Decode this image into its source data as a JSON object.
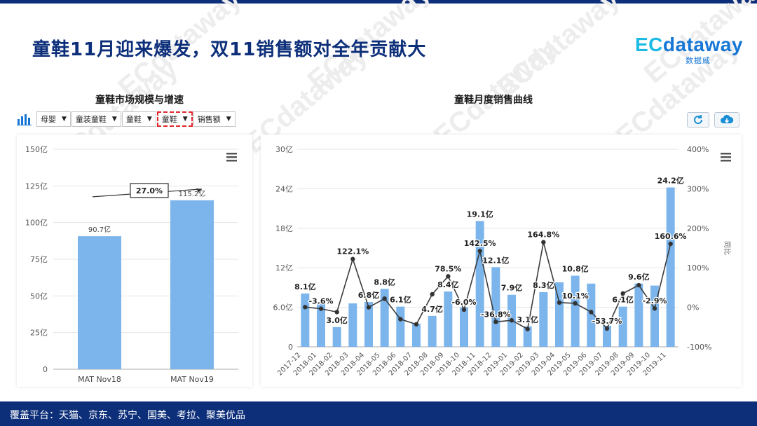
{
  "header": {
    "title": "童鞋11月迎来爆发，双11销售额对全年贡献大",
    "logo_ec": "EC",
    "logo_name": "dataway",
    "logo_sub": "数据威"
  },
  "watermark_text": "ECdataway",
  "left_panel": {
    "title": "童鞋市场规模与增速",
    "filters": [
      {
        "label": "母婴",
        "highlighted": false
      },
      {
        "label": "童装童鞋",
        "highlighted": false
      },
      {
        "label": "童鞋",
        "highlighted": false
      },
      {
        "label": "童鞋",
        "highlighted": true
      },
      {
        "label": "销售额",
        "highlighted": false
      }
    ]
  },
  "right_panel": {
    "title": "童鞋月度销售曲线"
  },
  "footer": {
    "text": "覆盖平台：天猫、京东、苏宁、国美、考拉、聚美优品"
  },
  "colors": {
    "brand": "#0d2f7a",
    "bar": "#7cb5ec",
    "line": "#3c3c3c",
    "highlight": "#e0262c"
  },
  "chart_data": [
    {
      "type": "bar",
      "title": "童鞋市场规模与增速",
      "categories": [
        "MAT Nov18",
        "MAT Nov19"
      ],
      "values": [
        90.7,
        115.2
      ],
      "data_labels": [
        "90.7亿",
        "115.2亿"
      ],
      "y_ticks": [
        "0",
        "25亿",
        "50亿",
        "75亿",
        "100亿",
        "125亿",
        "150亿"
      ],
      "ylim": [
        0,
        150
      ],
      "growth_label": "27.0%",
      "grid": true
    },
    {
      "type": "bar+line",
      "title": "童鞋月度销售曲线",
      "categories": [
        "2017-12",
        "2018-01",
        "2018-02",
        "2018-03",
        "2018-04",
        "2018-05",
        "2018-06",
        "2018-07",
        "2018-08",
        "2018-09",
        "2018-10",
        "2018-11",
        "2018-12",
        "2019-01",
        "2019-02",
        "2019-03",
        "2019-04",
        "2019-05",
        "2019-06",
        "2019-07",
        "2019-08",
        "2019-09",
        "2019-10",
        "2019-11"
      ],
      "bar_values": [
        8.1,
        6.8,
        3.0,
        6.6,
        6.8,
        8.8,
        6.1,
        3.5,
        4.7,
        8.4,
        6.0,
        19.1,
        12.1,
        7.9,
        3.1,
        8.3,
        9.8,
        10.8,
        9.6,
        3.2,
        6.1,
        9.6,
        9.3,
        24.2
      ],
      "bar_labels": [
        "8.1亿",
        "",
        "3.0亿",
        "",
        "6.8亿",
        "8.8亿",
        "6.1亿",
        "",
        "4.7亿",
        "8.4亿",
        "",
        "19.1亿",
        "12.1亿",
        "7.9亿",
        "3.1亿",
        "8.3亿",
        "",
        "10.8亿",
        "",
        "",
        "6.1亿",
        "9.6亿",
        "",
        "24.2亿"
      ],
      "line_values": [
        0.5,
        -3.6,
        -12,
        122.1,
        0,
        22,
        -30,
        -43,
        33,
        78.5,
        -6.0,
        142.5,
        -36.8,
        -33,
        -55,
        164.8,
        12,
        10.1,
        -12,
        -53.7,
        35,
        56,
        -2.9,
        160.6
      ],
      "line_labels": [
        "",
        "-3.6%",
        "",
        "122.1%",
        "",
        "",
        "",
        "",
        "",
        "78.5%",
        "-6.0%",
        "142.5%",
        "-36.8%",
        "",
        "",
        "164.8%",
        "",
        "10.1%",
        "",
        "-53.7%",
        "",
        "",
        "-2.9%",
        "160.6%"
      ],
      "y_left_ticks": [
        "0",
        "6.0亿",
        "12亿",
        "18亿",
        "24亿",
        "30亿"
      ],
      "y_left_lim": [
        0,
        30
      ],
      "y_right_ticks": [
        "-100%",
        "0%",
        "100%",
        "200%",
        "300%",
        "400%"
      ],
      "y_right_lim": [
        -100,
        400
      ],
      "y_right_label": "同比",
      "grid": true
    }
  ]
}
